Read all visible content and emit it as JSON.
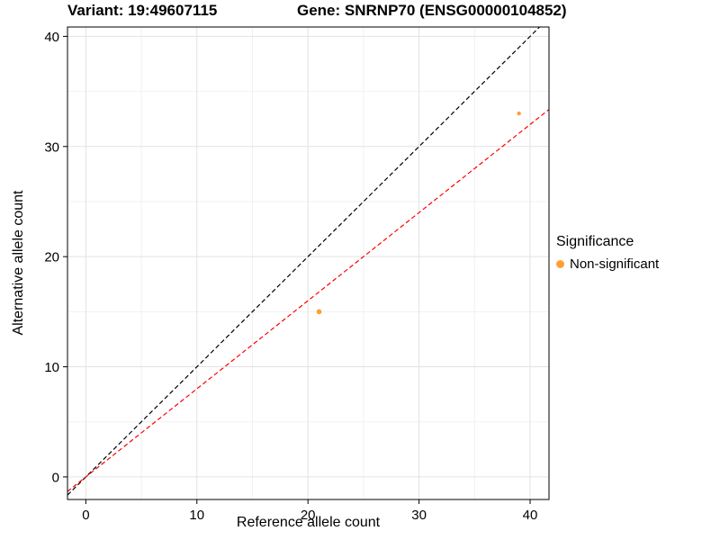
{
  "chart_data": {
    "type": "scatter",
    "title_left": "Variant: 19:49607115",
    "title_right": "Gene: SNRNP70 (ENSG00000104852)",
    "xlabel": "Reference allele count",
    "ylabel": "Alternative allele count",
    "xlim": [
      -1.65,
      41.7
    ],
    "ylim": [
      -2.05,
      40.85
    ],
    "x_ticks": [
      0,
      10,
      20,
      30,
      40
    ],
    "y_ticks": [
      0,
      10,
      20,
      30,
      40
    ],
    "x_minor_ticks": [
      5,
      15,
      25,
      35
    ],
    "y_minor_ticks": [
      5,
      15,
      25,
      35
    ],
    "grid": true,
    "points": [
      {
        "x": 21,
        "y": 15,
        "r": 2.8,
        "series": "Non-significant"
      },
      {
        "x": 39,
        "y": 33,
        "r": 2.2,
        "series": "Non-significant"
      }
    ],
    "lines": [
      {
        "name": "identity",
        "slope": 1.0,
        "intercept": 0,
        "color": "#000000",
        "style": "dashed"
      },
      {
        "name": "fit",
        "slope": 0.8,
        "intercept": 0,
        "color": "#FF0000",
        "style": "dashed"
      }
    ],
    "point_color": "#FFA033",
    "legend": {
      "title": "Significance",
      "position": "right",
      "items": [
        {
          "label": "Non-significant",
          "color": "#FFA033"
        }
      ]
    },
    "colors": {
      "grid_major": "#E2E2E2",
      "grid_minor": "#F1F1F1",
      "panel_border": "#000000",
      "panel_background": "#FFFFFF",
      "tick": "#000000"
    }
  }
}
